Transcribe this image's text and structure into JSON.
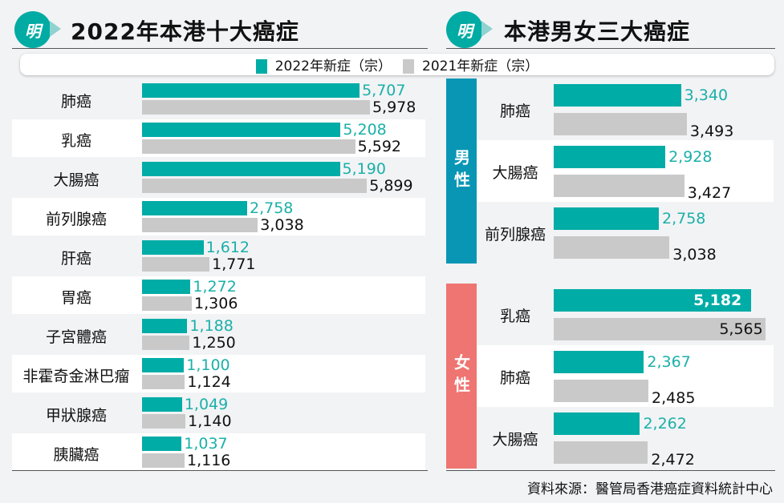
{
  "logo_text": "明",
  "colors": {
    "y2022": "#00aca6",
    "y2021": "#c9c9c9",
    "male": "#0996b5",
    "female": "#ee7571",
    "label_2022": "#1bb0a9"
  },
  "chart_data": [
    {
      "type": "bar",
      "title": "2022年本港十大癌症",
      "legend": [
        "2022年新症（宗）",
        "2021年新症（宗）"
      ],
      "categories": [
        "肺癌",
        "乳癌",
        "大腸癌",
        "前列腺癌",
        "肝癌",
        "胃癌",
        "子宮體癌",
        "非霍奇金淋巴瘤",
        "甲狀腺癌",
        "胰臟癌"
      ],
      "series": [
        {
          "name": "2022年新症（宗）",
          "values": [
            5707,
            5208,
            5190,
            2758,
            1612,
            1272,
            1188,
            1100,
            1049,
            1037
          ],
          "labels": [
            "5,707",
            "5,208",
            "5,190",
            "2,758",
            "1,612",
            "1,272",
            "1,188",
            "1,100",
            "1,049",
            "1,037"
          ]
        },
        {
          "name": "2021年新症（宗）",
          "values": [
            5978,
            5592,
            5899,
            3038,
            1771,
            1306,
            1250,
            1124,
            1140,
            1116
          ],
          "labels": [
            "5,978",
            "5,592",
            "5,899",
            "3,038",
            "1,771",
            "1,306",
            "1,250",
            "1,124",
            "1,140",
            "1,116"
          ]
        }
      ]
    },
    {
      "type": "bar",
      "title": "本港男女三大癌症",
      "groups": [
        {
          "name": "男性",
          "categories": [
            "肺癌",
            "大腸癌",
            "前列腺癌"
          ],
          "series": [
            {
              "name": "2022年新症（宗）",
              "values": [
                3340,
                2928,
                2758
              ],
              "labels": [
                "3,340",
                "2,928",
                "2,758"
              ]
            },
            {
              "name": "2021年新症（宗）",
              "values": [
                3493,
                3427,
                3038
              ],
              "labels": [
                "3,493",
                "3,427",
                "3,038"
              ]
            }
          ]
        },
        {
          "name": "女性",
          "categories": [
            "乳癌",
            "肺癌",
            "大腸癌"
          ],
          "series": [
            {
              "name": "2022年新症（宗）",
              "values": [
                5182,
                2367,
                2262
              ],
              "labels": [
                "5,182",
                "2,367",
                "2,262"
              ]
            },
            {
              "name": "2021年新症（宗）",
              "values": [
                5565,
                2485,
                2472
              ],
              "labels": [
                "5,565",
                "2,485",
                "2,472"
              ]
            }
          ]
        }
      ]
    }
  ],
  "source": "資料來源：醫管局香港癌症資料統計中心"
}
